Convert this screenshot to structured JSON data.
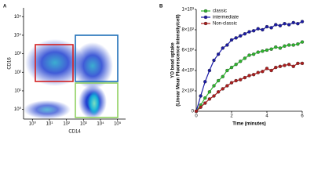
{
  "chart_data": [
    {
      "type": "density",
      "panel_label": "A",
      "x_label": "CD14",
      "y_label": "CD16",
      "xscale": "log",
      "yscale": "log",
      "xlim": [
        0.3,
        300000
      ],
      "ylim": [
        0.3,
        300000
      ],
      "xticks": [
        {
          "value": 1,
          "label": "10⁰"
        },
        {
          "value": 10,
          "label": "10¹"
        },
        {
          "value": 100,
          "label": "10²"
        },
        {
          "value": 1000,
          "label": "10³"
        },
        {
          "value": 10000,
          "label": "10⁴"
        },
        {
          "value": 100000,
          "label": "10⁵"
        }
      ],
      "yticks": [
        {
          "value": 1,
          "label": "10⁰"
        },
        {
          "value": 10,
          "label": "10¹"
        },
        {
          "value": 100,
          "label": "10²"
        },
        {
          "value": 1000,
          "label": "10³"
        },
        {
          "value": 10000,
          "label": "10⁴"
        },
        {
          "value": 100000,
          "label": "10⁵"
        }
      ]
    },
    {
      "type": "line",
      "panel_label": "B",
      "x_label": "Time (minutes)",
      "y_label": [
        "YO bead uptake",
        "(Linear Mean Fluorescence intensity/cell)"
      ],
      "x": [
        0,
        0.25,
        0.5,
        0.75,
        1,
        1.25,
        1.5,
        1.75,
        2,
        2.25,
        2.5,
        2.75,
        3,
        3.25,
        3.5,
        3.75,
        4,
        4.25,
        4.5,
        4.75,
        5,
        5.25,
        5.5,
        5.75,
        6
      ],
      "series": [
        {
          "name": "classic",
          "color": "#2db82d",
          "values": [
            0,
            60,
            130,
            190,
            250,
            300,
            340,
            400,
            430,
            460,
            490,
            520,
            550,
            560,
            580,
            590,
            600,
            610,
            630,
            620,
            640,
            650,
            650,
            660,
            680
          ]
        },
        {
          "name": "intermediate",
          "color": "#1a1aa8",
          "values": [
            0,
            150,
            290,
            400,
            500,
            560,
            620,
            650,
            700,
            720,
            740,
            760,
            780,
            790,
            810,
            800,
            830,
            820,
            850,
            840,
            860,
            850,
            870,
            860,
            880
          ]
        },
        {
          "name": "Non-classic",
          "color": "#b01c1c",
          "values": [
            0,
            40,
            80,
            120,
            150,
            190,
            220,
            250,
            280,
            300,
            310,
            330,
            350,
            360,
            380,
            390,
            420,
            400,
            430,
            440,
            450,
            460,
            440,
            470,
            470
          ]
        }
      ],
      "xlim": [
        0,
        6
      ],
      "ylim": [
        0,
        1000
      ],
      "xticks": [
        0,
        2,
        4,
        6
      ],
      "yticks": [
        0,
        {
          "value": 200,
          "label": "2×10²"
        },
        {
          "value": 400,
          "label": "4×10²"
        },
        {
          "value": 600,
          "label": "6×10²"
        },
        {
          "value": 800,
          "label": "8×10²"
        },
        {
          "value": 1000,
          "label": "1×10³"
        }
      ],
      "legend": "upper-left"
    }
  ]
}
